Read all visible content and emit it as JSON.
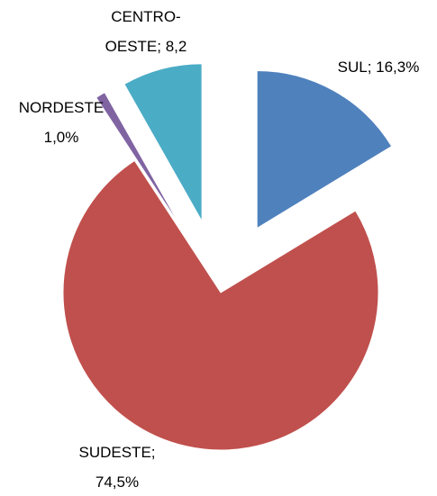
{
  "chart_data": {
    "type": "pie",
    "values": [
      16.3,
      74.5,
      1.0,
      8.2
    ],
    "value_labels": [
      "SUL; 16,3%",
      "SUDESTE;\n74,5%",
      "NORDESTE\n1,0%",
      "CENTRO-\nOESTE; 8,2"
    ],
    "colors": [
      "#4f81bd",
      "#c0504d",
      "#8064a2",
      "#4bacc6"
    ],
    "exploded": [
      true,
      false,
      true,
      true
    ]
  }
}
